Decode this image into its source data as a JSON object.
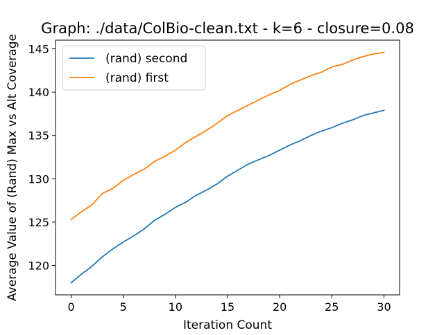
{
  "chart_data": {
    "type": "line",
    "title": "Graph: ./data/ColBio-clean.txt - k=6 - closure=0.08",
    "xlabel": "Iteration Count",
    "ylabel": "Average Value of (Rand) Max vs Alt Coverage",
    "xlim": [
      -1.5,
      31.5
    ],
    "ylim": [
      116.6,
      146.0
    ],
    "xticks": [
      0,
      5,
      10,
      15,
      20,
      25,
      30
    ],
    "yticks": [
      120,
      125,
      130,
      135,
      140,
      145
    ],
    "grid": false,
    "legend_position": "top-left",
    "x": [
      0,
      1,
      2,
      3,
      4,
      5,
      6,
      7,
      8,
      9,
      10,
      11,
      12,
      13,
      14,
      15,
      16,
      17,
      18,
      19,
      20,
      21,
      22,
      23,
      24,
      25,
      26,
      27,
      28,
      29,
      30
    ],
    "series": [
      {
        "name": "(rand) second",
        "color": "#1f77b4",
        "values": [
          118.0,
          119.0,
          119.9,
          121.0,
          121.9,
          122.7,
          123.4,
          124.2,
          125.2,
          125.9,
          126.7,
          127.3,
          128.1,
          128.7,
          129.4,
          130.3,
          131.0,
          131.7,
          132.2,
          132.7,
          133.3,
          133.9,
          134.4,
          135.0,
          135.5,
          135.9,
          136.4,
          136.8,
          137.3,
          137.6,
          137.9
        ]
      },
      {
        "name": "(rand) first",
        "color": "#ff7f0e",
        "values": [
          125.3,
          126.2,
          127.0,
          128.3,
          128.9,
          129.8,
          130.5,
          131.1,
          132.0,
          132.6,
          133.3,
          134.2,
          134.9,
          135.6,
          136.4,
          137.3,
          137.9,
          138.5,
          139.1,
          139.7,
          140.2,
          140.9,
          141.4,
          141.9,
          142.3,
          142.9,
          143.2,
          143.7,
          144.1,
          144.4,
          144.6
        ]
      }
    ]
  }
}
